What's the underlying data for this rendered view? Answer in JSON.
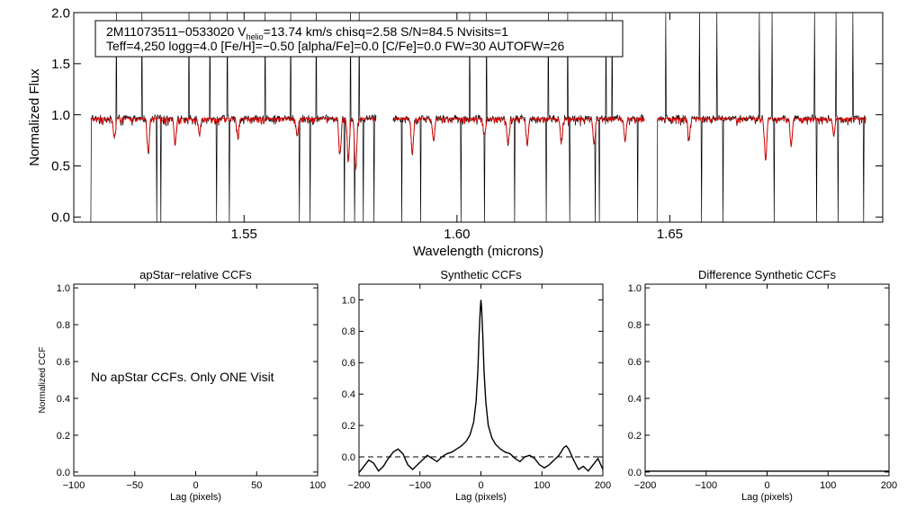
{
  "figure": {
    "info_line1": "2M11073511−0533020  V",
    "info_vhelio_sub": "helio",
    "info_line1_rest": "=13.74 km/s  chisq=2.58  S/N=84.5  Nvisits=1",
    "info_line2": "Teff=4,250 logg=4.0 [Fe/H]=−0.50 [alpha/Fe]=0.0 [C/Fe]=0.0 FW=30 AUTOFW=26",
    "message": "No apStar CCFs.  Only ONE Visit"
  },
  "colors": {
    "observed": "#000000",
    "model": "#dd0000",
    "axes": "#000000"
  },
  "chart_data": [
    {
      "id": "spectrum",
      "type": "line",
      "title": "",
      "xlabel": "Wavelength (microns)",
      "ylabel": "Normalized Flux",
      "xlim": [
        1.51,
        1.7
      ],
      "ylim": [
        -0.05,
        2.0
      ],
      "x_ticks": [
        1.55,
        1.6,
        1.65
      ],
      "x_tick_labels": [
        "1.55",
        "1.60",
        "1.65"
      ],
      "y_ticks": [
        0.0,
        0.5,
        1.0,
        1.5,
        2.0
      ],
      "y_tick_labels": [
        "0.0",
        "0.5",
        "1.0",
        "1.5",
        "2.0"
      ],
      "chip_ranges": [
        [
          1.514,
          1.581
        ],
        [
          1.585,
          1.644
        ],
        [
          1.647,
          1.696
        ]
      ],
      "continuum_level": 0.97,
      "series": [
        {
          "name": "observed",
          "color": "#000000"
        },
        {
          "name": "model",
          "color": "#dd0000"
        }
      ],
      "high_spikes": [
        1.52,
        1.526,
        1.537,
        1.542,
        1.546,
        1.555,
        1.561,
        1.567,
        1.575,
        1.577,
        1.601,
        1.603,
        1.607,
        1.6135,
        1.6215,
        1.626,
        1.635,
        1.6365,
        1.649,
        1.657,
        1.661,
        1.671,
        1.674,
        1.684,
        1.689,
        1.693
      ],
      "deep_drops": [
        1.5135,
        1.5295,
        1.5305,
        1.5435,
        1.5465,
        1.563,
        1.5655,
        1.5735,
        1.576,
        1.578,
        1.5805,
        1.587,
        1.5915,
        1.601,
        1.6065,
        1.6135,
        1.621,
        1.6265,
        1.6325,
        1.6335,
        1.6425,
        1.6465,
        1.6575,
        1.6625,
        1.6745,
        1.6845,
        1.6895,
        1.6955
      ],
      "model_dips": [
        {
          "x": 1.5195,
          "y": 0.78
        },
        {
          "x": 1.5275,
          "y": 0.63
        },
        {
          "x": 1.5338,
          "y": 0.72
        },
        {
          "x": 1.5395,
          "y": 0.82
        },
        {
          "x": 1.5485,
          "y": 0.8
        },
        {
          "x": 1.5625,
          "y": 0.8
        },
        {
          "x": 1.5725,
          "y": 0.62
        },
        {
          "x": 1.5745,
          "y": 0.55
        },
        {
          "x": 1.5762,
          "y": 0.48
        },
        {
          "x": 1.5895,
          "y": 0.62
        },
        {
          "x": 1.5945,
          "y": 0.75
        },
        {
          "x": 1.6065,
          "y": 0.82
        },
        {
          "x": 1.612,
          "y": 0.72
        },
        {
          "x": 1.6165,
          "y": 0.7
        },
        {
          "x": 1.6245,
          "y": 0.75
        },
        {
          "x": 1.6322,
          "y": 0.72
        },
        {
          "x": 1.6395,
          "y": 0.74
        },
        {
          "x": 1.6545,
          "y": 0.78
        },
        {
          "x": 1.6725,
          "y": 0.55
        },
        {
          "x": 1.6785,
          "y": 0.7
        },
        {
          "x": 1.6885,
          "y": 0.8
        }
      ]
    },
    {
      "id": "apstar_ccf",
      "type": "line",
      "title": "apStar−relative CCFs",
      "xlabel": "Lag (pixels)",
      "ylabel": "Normalized CCF",
      "xlim": [
        -100,
        100
      ],
      "ylim": [
        -0.02,
        1.02
      ],
      "x_ticks": [
        -100,
        -50,
        0,
        50,
        100
      ],
      "x_tick_labels": [
        "−100",
        "−50",
        "0",
        "50",
        "100"
      ],
      "y_ticks": [
        0.0,
        0.2,
        0.4,
        0.6,
        0.8,
        1.0
      ],
      "y_tick_labels": [
        "0.0",
        "0.2",
        "0.4",
        "0.6",
        "0.8",
        "1.0"
      ],
      "series": []
    },
    {
      "id": "synthetic_ccf",
      "type": "line",
      "title": "Synthetic CCFs",
      "xlabel": "Lag (pixels)",
      "ylabel": "",
      "xlim": [
        -200,
        200
      ],
      "ylim": [
        -0.12,
        1.1
      ],
      "x_ticks": [
        -200,
        -100,
        0,
        100,
        200
      ],
      "x_tick_labels": [
        "−200",
        "−100",
        "0",
        "100",
        "200"
      ],
      "y_ticks": [
        0.0,
        0.2,
        0.4,
        0.6,
        0.8,
        1.0
      ],
      "y_tick_labels": [
        "0.0",
        "0.2",
        "0.4",
        "0.6",
        "0.8",
        "1.0"
      ],
      "zero_line": 0.0,
      "series": [
        {
          "name": "ccf",
          "color": "#000000",
          "x": [
            -200,
            -192,
            -184,
            -176,
            -168,
            -160,
            -152,
            -144,
            -136,
            -128,
            -120,
            -112,
            -104,
            -96,
            -88,
            -80,
            -72,
            -64,
            -56,
            -48,
            -40,
            -32,
            -24,
            -18,
            -12,
            -8,
            -5,
            -3,
            -1,
            0,
            1,
            3,
            5,
            8,
            12,
            18,
            24,
            32,
            40,
            48,
            56,
            64,
            72,
            80,
            88,
            96,
            104,
            112,
            120,
            128,
            136,
            140,
            144,
            152,
            160,
            168,
            176,
            184,
            192,
            200
          ],
          "y": [
            -0.1,
            -0.06,
            -0.02,
            -0.04,
            -0.09,
            -0.06,
            -0.01,
            0.03,
            0.05,
            0.02,
            -0.05,
            -0.08,
            -0.05,
            -0.02,
            0.01,
            -0.01,
            -0.03,
            0.0,
            0.02,
            0.03,
            0.05,
            0.07,
            0.1,
            0.14,
            0.22,
            0.35,
            0.55,
            0.78,
            0.95,
            1.0,
            0.95,
            0.78,
            0.55,
            0.35,
            0.2,
            0.12,
            0.08,
            0.05,
            0.03,
            0.02,
            -0.01,
            -0.03,
            0.0,
            0.01,
            -0.01,
            -0.05,
            -0.07,
            -0.05,
            -0.02,
            0.01,
            0.06,
            0.07,
            0.05,
            -0.02,
            -0.08,
            -0.06,
            -0.09,
            -0.05,
            -0.01,
            -0.08
          ]
        }
      ]
    },
    {
      "id": "difference_ccf",
      "type": "line",
      "title": "Difference Synthetic CCFs",
      "xlabel": "Lag (pixels)",
      "ylabel": "",
      "xlim": [
        -200,
        200
      ],
      "ylim": [
        -0.02,
        1.02
      ],
      "x_ticks": [
        -200,
        -100,
        0,
        100,
        200
      ],
      "x_tick_labels": [
        "−200",
        "−100",
        "0",
        "100",
        "200"
      ],
      "y_ticks": [
        0.0,
        0.2,
        0.4,
        0.6,
        0.8,
        1.0
      ],
      "y_tick_labels": [
        "0.0",
        "0.2",
        "0.4",
        "0.6",
        "0.8",
        "1.0"
      ],
      "series": [
        {
          "name": "difference",
          "color": "#000000",
          "x": [
            -200,
            200
          ],
          "y": [
            0.0,
            0.0
          ]
        }
      ]
    }
  ]
}
